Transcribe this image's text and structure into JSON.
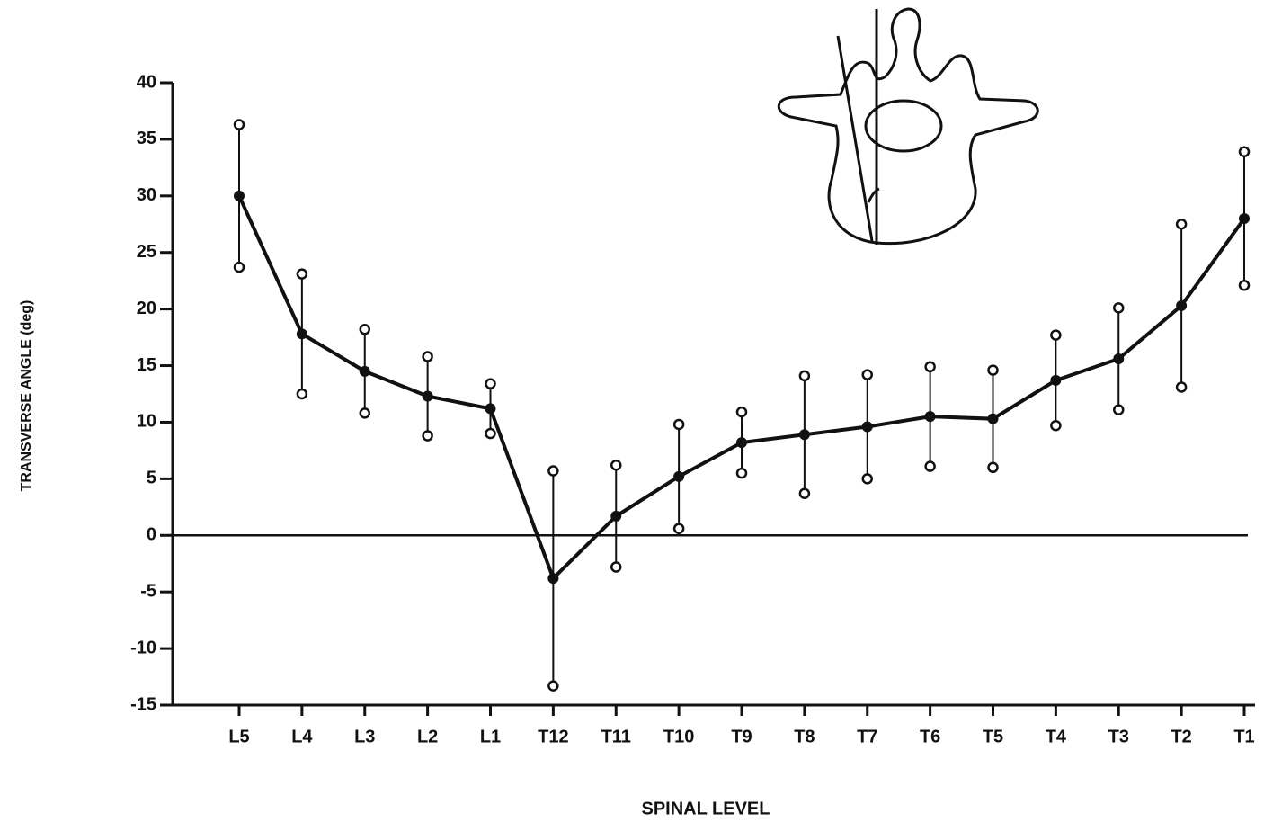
{
  "chart_data": {
    "type": "line-errorbar",
    "x_label": "SPINAL LEVEL",
    "y_label": "TRANSVERSE ANGLE (deg)",
    "categories": [
      "L5",
      "L4",
      "L3",
      "L2",
      "L1",
      "T12",
      "T11",
      "T10",
      "T9",
      "T8",
      "T7",
      "T6",
      "T5",
      "T4",
      "T3",
      "T2",
      "T1"
    ],
    "values": [
      30,
      17.8,
      14.5,
      12.3,
      11.2,
      -3.8,
      1.7,
      5.2,
      8.2,
      8.9,
      9.6,
      10.5,
      10.3,
      13.7,
      15.6,
      20.3,
      28
    ],
    "errors": [
      6.3,
      5.3,
      3.7,
      3.5,
      2.2,
      9.5,
      4.5,
      4.6,
      2.7,
      5.2,
      4.6,
      4.4,
      4.3,
      4.0,
      4.5,
      7.2,
      5.9
    ],
    "color": "#111111",
    "ylim": [
      -15,
      40
    ],
    "yticks": [
      40,
      35,
      30,
      25,
      20,
      15,
      10,
      5,
      0,
      -5,
      -10,
      -15
    ],
    "zero_line": true
  }
}
